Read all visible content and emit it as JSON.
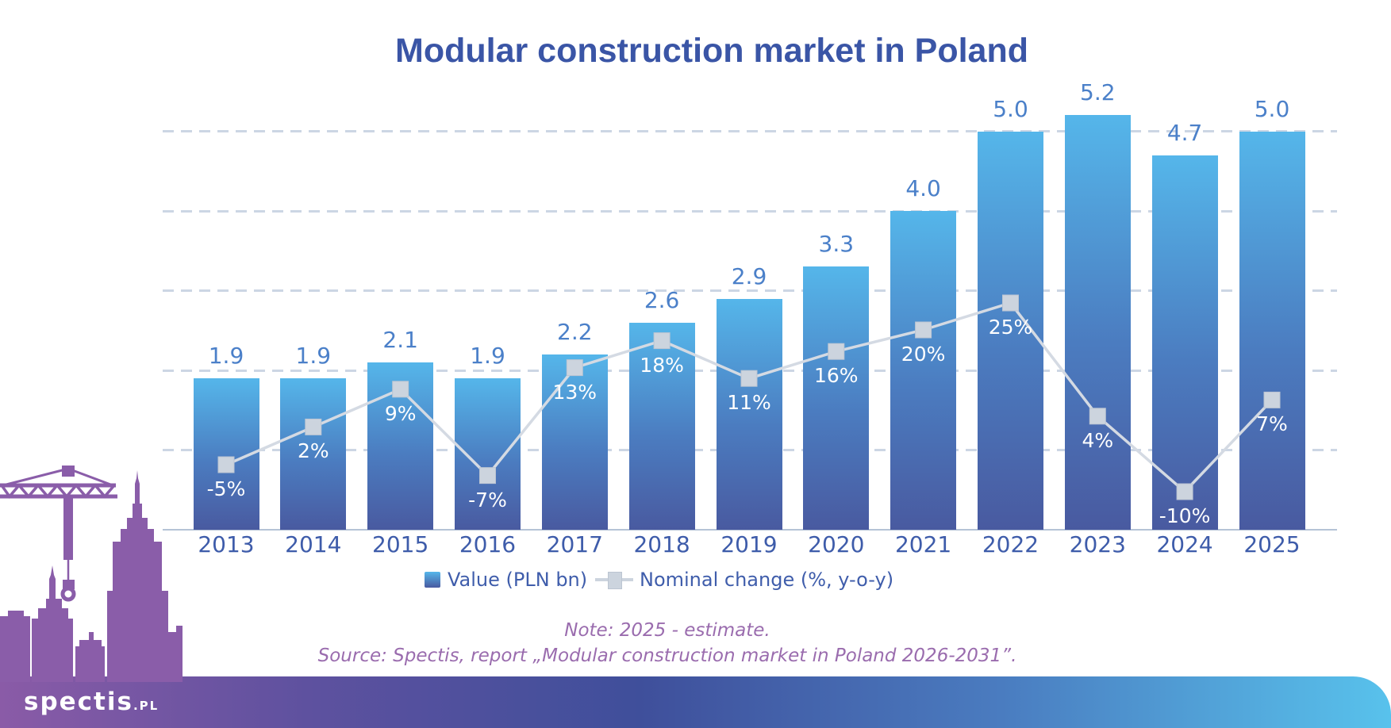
{
  "title": "Modular construction market in Poland",
  "legend": {
    "bar_label": "Value (PLN bn)",
    "line_label": "Nominal change (%, y-o-y)"
  },
  "note": "Note: 2025 - estimate.",
  "source": "Source: Spectis, report „Modular construction market in Poland 2026-2031”.",
  "logo": {
    "brand": "spectis",
    "suffix": ".PL"
  },
  "chart_data": {
    "type": "bar",
    "subtype": "bar+line combo",
    "categories": [
      "2013",
      "2014",
      "2015",
      "2016",
      "2017",
      "2018",
      "2019",
      "2020",
      "2021",
      "2022",
      "2023",
      "2024",
      "2025"
    ],
    "series": [
      {
        "name": "Value (PLN bn)",
        "type": "bar",
        "unit": "PLN bn",
        "values": [
          1.9,
          1.9,
          2.1,
          1.9,
          2.2,
          2.6,
          2.9,
          3.3,
          4.0,
          5.0,
          5.2,
          4.7,
          5.0
        ]
      },
      {
        "name": "Nominal change (%, y-o-y)",
        "type": "line",
        "unit": "%",
        "values": [
          -5,
          2,
          9,
          -7,
          13,
          18,
          11,
          16,
          20,
          25,
          4,
          -10,
          7
        ]
      }
    ],
    "title": "Modular construction market in Poland",
    "xlabel": "",
    "ylabel": "",
    "ylim": [
      0,
      5.6
    ],
    "gridlines_at": [
      1,
      2,
      3,
      4,
      5
    ],
    "grid": "dashed horizontal",
    "axis_labels_visible": false,
    "data_labels": true,
    "legend_position": "bottom"
  },
  "colors": {
    "background": "#ffffff",
    "title": "#3a55a6",
    "bar_top": "#55b6ea",
    "bar_mid": "#4b7cc0",
    "bar_bottom": "#495aa0",
    "value_label": "#4b80c9",
    "year_label": "#3e5caa",
    "pct_label": "#ffffff",
    "line": "#d4dae3",
    "marker": "#ccd4de",
    "marker_border": "#bcc5d2",
    "grid": "#ccd6e4",
    "axis": "#b5c3d6",
    "legend_text": "#3f5dab",
    "note": "#9a6cae",
    "skyline": "#8a5da9",
    "footer_left": "#8a5ba7",
    "footer_mid": "#3f4f9b",
    "footer_right": "#58c2ec"
  }
}
